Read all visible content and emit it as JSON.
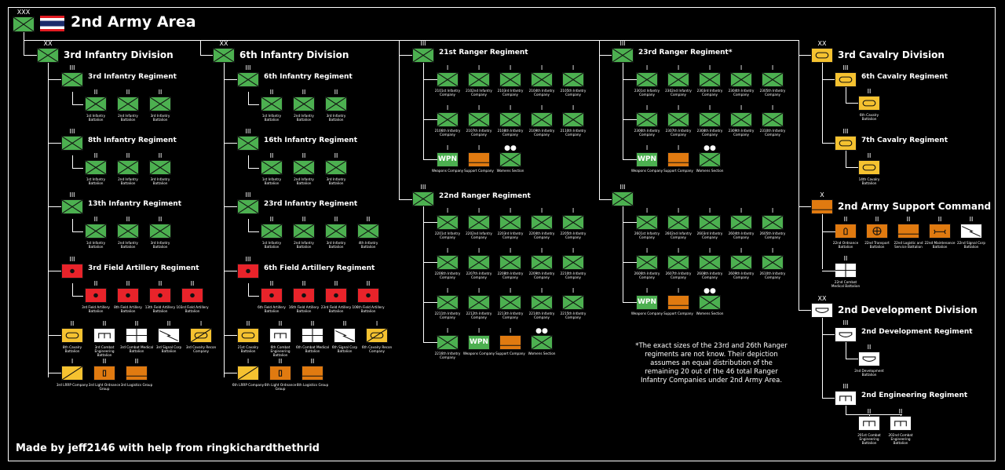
{
  "title": "2nd Army Area",
  "credit": "Made by jeff2146 with help from ringkichardthethrid",
  "note": "*The exact sizes of the 23rd and 26th Ranger regiments are not know. Their depiction assumes an equal distribution of the remaining 20 out of the 46 total Ranger Infantry Companies under 2nd Army Area.",
  "colors": {
    "infantry": "#4cb050",
    "field_artillery": "#e8232a",
    "cavalry": "#f5c230",
    "support": "#e07a10",
    "combat_support": "#ffffff",
    "background": "#000000",
    "line": "#ffffff"
  },
  "echelons": {
    "army": "XXX",
    "division": "XX",
    "brigade": "X",
    "regiment": "III",
    "company": "I",
    "section": "●●"
  },
  "units": [
    {
      "id": "army",
      "echelon": "XXX",
      "label": "2nd Army Area",
      "type": "infantry"
    },
    {
      "id": "div3",
      "echelon": "XX",
      "label": "3rd Infantry Division",
      "type": "infantry"
    },
    {
      "id": "div6",
      "echelon": "XX",
      "label": "6th Infantry Division",
      "type": "infantry"
    },
    {
      "id": "reg21",
      "echelon": "III",
      "label": "21st Ranger Regiment",
      "type": "infantry"
    },
    {
      "id": "reg23r",
      "echelon": "III",
      "label": "23rd Ranger Regiment*",
      "type": "infantry"
    },
    {
      "id": "cav3",
      "echelon": "XX",
      "label": "3rd Cavalry Division",
      "type": "armored_cavalry"
    },
    {
      "id": "r3inf",
      "echelon": "III",
      "label": "3rd Infantry Regiment",
      "type": "infantry"
    },
    {
      "id": "r8inf",
      "echelon": "III",
      "label": "8th Infantry Regiment",
      "type": "infantry"
    },
    {
      "id": "r13inf",
      "echelon": "III",
      "label": "13th Infantry Regiment",
      "type": "infantry"
    },
    {
      "id": "r3fa",
      "echelon": "III",
      "label": "3rd Field Artillery Regiment",
      "type": "field_artillery"
    },
    {
      "id": "r6inf",
      "echelon": "III",
      "label": "6th Infantry Regiment",
      "type": "infantry"
    },
    {
      "id": "r16inf",
      "echelon": "III",
      "label": "16th Infantry Regiment",
      "type": "infantry"
    },
    {
      "id": "r23inf",
      "echelon": "III",
      "label": "23rd Infantry Regiment",
      "type": "infantry"
    },
    {
      "id": "r6fa",
      "echelon": "III",
      "label": "6th Field Artillery Regiment",
      "type": "field_artillery"
    },
    {
      "id": "reg22",
      "echelon": "III",
      "label": "22nd Ranger Regiment",
      "type": "infantry"
    },
    {
      "id": "r6cav",
      "echelon": "III",
      "label": "6th Cavalry Regiment",
      "type": "armored_cavalry"
    },
    {
      "id": "r7cav",
      "echelon": "III",
      "label": "7th Cavalry Regiment",
      "type": "armored_cavalry"
    },
    {
      "id": "sup2",
      "echelon": "X",
      "label": "2nd Army Support Command",
      "type": "support"
    },
    {
      "id": "dev2",
      "echelon": "XX",
      "label": "2nd Development Division",
      "type": "development"
    },
    {
      "id": "rdev2",
      "echelon": "III",
      "label": "2nd Development Regiment",
      "type": "development"
    },
    {
      "id": "reng2",
      "echelon": "III",
      "label": "2nd Engineering Regiment",
      "type": "engineer"
    }
  ],
  "subunits": {
    "r3inf": [
      "1st Infantry Battalion",
      "2nd Infantry Battalion",
      "3rd Infantry Battalion"
    ],
    "r8inf": [
      "1st Infantry Battalion",
      "2nd Infantry Battalion",
      "3rd Infantry Battalion"
    ],
    "r13inf": [
      "1st Infantry Battalion",
      "2nd Infantry Battalion",
      "3rd Infantry Battalion"
    ],
    "r3fa": [
      "3rd Field Artillery Battalion",
      "8th Field Artillery Battalion",
      "13th Field Artillery Battalion",
      "103rd Field Artillery Battalion"
    ],
    "div3_support_row1": [
      "8th Cavalry Battalion",
      "3rd Combat Engineering Battalion",
      "3rd Combat Medical Battalion",
      "3rd Signal Corp Battalion",
      "3rd Cavalry Recon Company"
    ],
    "div3_support_row2": [
      "3rd LRRP Company",
      "3rd Light Ordnance Group",
      "3rd Logistics Group"
    ],
    "r6inf": [
      "1st Infantry Battalion",
      "2nd Infantry Battalion",
      "3rd Infantry Battalion"
    ],
    "r16inf": [
      "1st Infantry Battalion",
      "2nd Infantry Battalion",
      "3rd Infantry Battalion"
    ],
    "r23inf": [
      "1st Infantry Battalion",
      "2nd Infantry Battalion",
      "3rd Infantry Battalion",
      "4th Infantry Battalion"
    ],
    "r6fa": [
      "6th Field Artillery Battalion",
      "16th Field Artillery Battalion",
      "23rd Field Artillery Battalion",
      "106th Field Artillery Battalion"
    ],
    "div6_support_row1": [
      "21st Cavalry Battalion",
      "6th Combat Engineering Battalion",
      "6th Combat Medical Battalion",
      "6th Signal Corp Battalion",
      "6th Cavalry Recon Company"
    ],
    "div6_support_row2": [
      "6th LRRP Company",
      "6th Light Ordnance Group",
      "6th Logistics Group"
    ],
    "reg21_row1": [
      "2101st Infantry Company",
      "2102nd Infantry Company",
      "2103rd Infantry Company",
      "2104th Infantry Company",
      "2105th Infantry Company"
    ],
    "reg21_row2": [
      "2106th Infantry Company",
      "2107th Infantry Company",
      "2108th Infantry Company",
      "2109th Infantry Company",
      "2110th Infantry Company"
    ],
    "reg21_row3": [
      "Weapons Company",
      "Support Company",
      "Womens Section"
    ],
    "reg22_row1": [
      "2201st Infantry Company",
      "2202nd Infantry Company",
      "2203rd Infantry Company",
      "2204th Infantry Company",
      "2205th Infantry Company"
    ],
    "reg22_row2": [
      "2206th Infantry Company",
      "2207th Infantry Company",
      "2208th Infantry Company",
      "2209th Infantry Company",
      "2210th Infantry Company"
    ],
    "reg22_row3": [
      "2211th Infantry Company",
      "2212th Infantry Company",
      "2213th Infantry Company",
      "2214th Infantry Company",
      "2215th Infantry Company"
    ],
    "reg22_row4": [
      "2216th Infantry Company",
      "Weapons Company",
      "Support Company",
      "Womens Section"
    ],
    "reg23r_row1": [
      "2301st Infantry Company",
      "2302nd Infantry Company",
      "2303rd Infantry Company",
      "2304th Infantry Company",
      "2305th Infantry Company"
    ],
    "reg23r_row2": [
      "2306th Infantry Company",
      "2307th Infantry Company",
      "2308th Infantry Company",
      "2309th Infantry Company",
      "2310th Infantry Company"
    ],
    "reg23r_row3": [
      "Weapons Company",
      "Support Company",
      "Womens Section"
    ],
    "reg26_row1": [
      "2601st Infantry Company",
      "2602nd Infantry Company",
      "2603rd Infantry Company",
      "2604th Infantry Company",
      "2605th Infantry Company"
    ],
    "reg26_row2": [
      "2606th Infantry Company",
      "2607th Infantry Company",
      "2608th Infantry Company",
      "2609th Infantry Company",
      "2610th Infantry Company"
    ],
    "reg26_row3": [
      "Weapons Company",
      "Support Company",
      "Womens Section"
    ],
    "r6cav": [
      "6th Cavalry Battalion"
    ],
    "r7cav": [
      "14th Cavalry Battalion"
    ],
    "sup2_row1": [
      "22nd Ordnance Battalion",
      "22nd Transport Battalion",
      "22nd Logistic and Service Battalion",
      "22nd Maintenance Battalion",
      "22nd Signal Corp Battalion"
    ],
    "sup2_row2": [
      "22nd Combat Medical Battalion"
    ],
    "rdev2": [
      "2nd Development Battalion"
    ],
    "reng2": [
      "201st Combat Engineering Battalion",
      "202nd Combat Engineering Battalion"
    ]
  },
  "weapons_label": "WPN"
}
